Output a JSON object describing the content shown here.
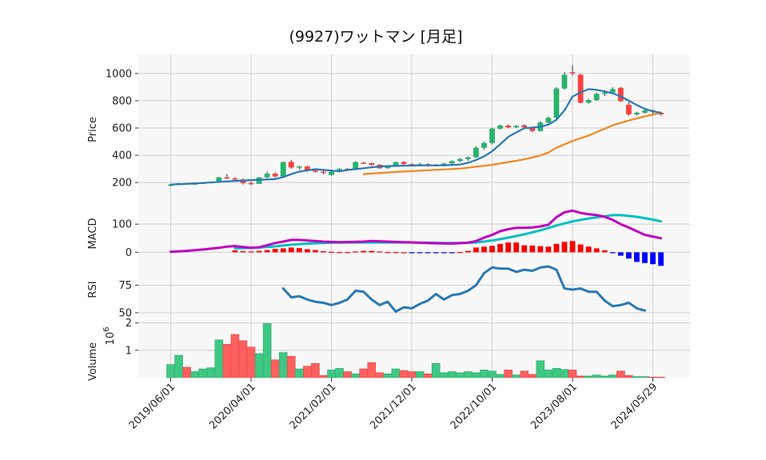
{
  "chart_data": {
    "type": "candlestick",
    "title": "(9927)ワットマン [月足]",
    "x_tick_labels": [
      "2019/06/01",
      "2020/04/01",
      "2021/02/01",
      "2021/12/01",
      "2022/10/01",
      "2023/08/01",
      "2024/05/29"
    ],
    "grid": true,
    "colors": {
      "up": "#26b36b",
      "down": "#ff4040",
      "ma_short": "#2a78b5",
      "ma_long": "#f5861f",
      "macd": "#c000c0",
      "signal": "#00c0c0",
      "hist_pos": "#ff0000",
      "hist_neg": "#0000ff",
      "rsi": "#2a78b5",
      "vol_up": "#3fc884",
      "vol_down": "#ff5f5f"
    },
    "price_panel": {
      "ylabel": "Price",
      "yticks": [
        200,
        400,
        600,
        800,
        1000
      ],
      "ylim": [
        60,
        1140
      ],
      "candles": [
        [
          176,
          185,
          172,
          185
        ],
        [
          186,
          197,
          182,
          194
        ],
        [
          194,
          197,
          186,
          188
        ],
        [
          188,
          195,
          184,
          193
        ],
        [
          193,
          202,
          190,
          198
        ],
        [
          198,
          205,
          195,
          203
        ],
        [
          203,
          242,
          200,
          238
        ],
        [
          238,
          262,
          225,
          230
        ],
        [
          230,
          240,
          216,
          222
        ],
        [
          222,
          230,
          185,
          196
        ],
        [
          196,
          205,
          182,
          190
        ],
        [
          190,
          240,
          190,
          238
        ],
        [
          238,
          280,
          232,
          265
        ],
        [
          265,
          276,
          235,
          245
        ],
        [
          245,
          355,
          240,
          350
        ],
        [
          352,
          365,
          300,
          310
        ],
        [
          310,
          325,
          295,
          318
        ],
        [
          318,
          323,
          280,
          290
        ],
        [
          290,
          300,
          272,
          280
        ],
        [
          280,
          290,
          260,
          272
        ],
        [
          255,
          285,
          250,
          280
        ],
        [
          280,
          305,
          275,
          300
        ],
        [
          300,
          308,
          292,
          298
        ],
        [
          298,
          355,
          296,
          350
        ],
        [
          345,
          352,
          335,
          342
        ],
        [
          342,
          345,
          322,
          330
        ],
        [
          330,
          335,
          300,
          305
        ],
        [
          305,
          320,
          300,
          318
        ],
        [
          318,
          355,
          315,
          350
        ],
        [
          350,
          358,
          330,
          335
        ],
        [
          335,
          340,
          320,
          330
        ],
        [
          330,
          345,
          322,
          335
        ],
        [
          335,
          342,
          315,
          322
        ],
        [
          322,
          335,
          318,
          328
        ],
        [
          328,
          345,
          322,
          340
        ],
        [
          340,
          362,
          332,
          358
        ],
        [
          358,
          380,
          350,
          372
        ],
        [
          372,
          390,
          360,
          385
        ],
        [
          385,
          465,
          380,
          455
        ],
        [
          455,
          500,
          440,
          490
        ],
        [
          490,
          600,
          480,
          595
        ],
        [
          595,
          625,
          588,
          618
        ],
        [
          618,
          625,
          598,
          605
        ],
        [
          605,
          622,
          600,
          615
        ],
        [
          620,
          628,
          598,
          605
        ],
        [
          605,
          612,
          570,
          578
        ],
        [
          578,
          650,
          575,
          640
        ],
        [
          640,
          685,
          635,
          675
        ],
        [
          675,
          900,
          660,
          890
        ],
        [
          890,
          1010,
          880,
          990
        ],
        [
          1010,
          1060,
          985,
          1005
        ],
        [
          990,
          1000,
          780,
          785
        ],
        [
          785,
          815,
          780,
          805
        ],
        [
          805,
          860,
          800,
          850
        ],
        [
          850,
          880,
          835,
          860
        ],
        [
          860,
          900,
          852,
          885
        ],
        [
          895,
          900,
          790,
          798
        ],
        [
          770,
          790,
          690,
          700
        ],
        [
          700,
          720,
          692,
          712
        ],
        [
          712,
          745,
          705,
          728
        ],
        [
          728,
          735,
          690,
          720
        ],
        [
          712,
          720,
          690,
          700
        ]
      ],
      "ma_short": [
        null,
        null,
        null,
        null,
        null,
        null,
        null,
        null,
        null,
        null,
        null,
        null,
        null,
        null,
        null,
        null,
        null,
        null,
        null,
        null,
        null,
        null,
        null,
        null,
        null,
        null,
        null,
        null,
        null,
        null,
        null,
        null,
        null,
        null,
        null,
        null,
        null,
        null,
        null,
        null,
        null,
        null,
        null,
        null,
        null,
        null,
        null,
        null,
        null,
        null,
        null,
        null,
        null,
        null,
        null,
        null,
        null,
        null,
        null,
        null,
        null,
        null
      ],
      "ma_short_points": [
        [
          0,
          185
        ],
        [
          2,
          190
        ],
        [
          4,
          197
        ],
        [
          6,
          205
        ],
        [
          8,
          212
        ],
        [
          10,
          218
        ],
        [
          12,
          222
        ],
        [
          13,
          225
        ],
        [
          14,
          240
        ],
        [
          15,
          262
        ],
        [
          16,
          280
        ],
        [
          18,
          298
        ],
        [
          20,
          288
        ],
        [
          21,
          282
        ],
        [
          22,
          292
        ],
        [
          24,
          305
        ],
        [
          26,
          318
        ],
        [
          28,
          322
        ],
        [
          30,
          325
        ],
        [
          32,
          326
        ],
        [
          34,
          326
        ],
        [
          36,
          332
        ],
        [
          37,
          345
        ],
        [
          38,
          365
        ],
        [
          39,
          392
        ],
        [
          40,
          430
        ],
        [
          41,
          480
        ],
        [
          42,
          535
        ],
        [
          43,
          568
        ],
        [
          44,
          598
        ],
        [
          46,
          608
        ],
        [
          47,
          625
        ],
        [
          48,
          660
        ],
        [
          49,
          730
        ],
        [
          50,
          830
        ],
        [
          51,
          862
        ],
        [
          52,
          885
        ],
        [
          53,
          880
        ],
        [
          54,
          868
        ],
        [
          55,
          855
        ],
        [
          56,
          832
        ],
        [
          57,
          800
        ],
        [
          58,
          768
        ],
        [
          59,
          740
        ],
        [
          60,
          722
        ],
        [
          61,
          712
        ]
      ],
      "ma_long_points": [
        [
          24,
          262
        ],
        [
          28,
          278
        ],
        [
          32,
          290
        ],
        [
          36,
          302
        ],
        [
          40,
          330
        ],
        [
          44,
          370
        ],
        [
          46,
          398
        ],
        [
          47,
          420
        ],
        [
          48,
          455
        ],
        [
          50,
          505
        ],
        [
          52,
          545
        ],
        [
          54,
          595
        ],
        [
          55,
          620
        ],
        [
          57,
          655
        ],
        [
          59,
          685
        ],
        [
          61,
          712
        ]
      ]
    },
    "macd_panel": {
      "ylabel": "MACD",
      "yticks": [
        0,
        100
      ],
      "ylim": [
        -50,
        180
      ],
      "macd_points": [
        [
          0,
          2
        ],
        [
          2,
          5
        ],
        [
          4,
          10
        ],
        [
          6,
          16
        ],
        [
          7,
          20
        ],
        [
          8,
          22
        ],
        [
          9,
          19
        ],
        [
          10,
          16
        ],
        [
          11,
          18
        ],
        [
          12,
          25
        ],
        [
          13,
          33
        ],
        [
          14,
          38
        ],
        [
          15,
          44
        ],
        [
          16,
          44
        ],
        [
          17,
          42
        ],
        [
          19,
          38
        ],
        [
          21,
          36
        ],
        [
          24,
          38
        ],
        [
          25,
          40
        ],
        [
          27,
          38
        ],
        [
          29,
          36
        ],
        [
          31,
          34
        ],
        [
          33,
          32
        ],
        [
          35,
          31
        ],
        [
          37,
          34
        ],
        [
          38,
          40
        ],
        [
          39,
          52
        ],
        [
          40,
          62
        ],
        [
          41,
          75
        ],
        [
          42,
          82
        ],
        [
          43,
          87
        ],
        [
          44,
          87
        ],
        [
          45,
          88
        ],
        [
          46,
          92
        ],
        [
          47,
          98
        ],
        [
          48,
          125
        ],
        [
          49,
          142
        ],
        [
          50,
          148
        ],
        [
          51,
          140
        ],
        [
          52,
          135
        ],
        [
          53,
          132
        ],
        [
          54,
          126
        ],
        [
          55,
          115
        ],
        [
          56,
          100
        ],
        [
          57,
          88
        ],
        [
          58,
          75
        ],
        [
          59,
          62
        ],
        [
          61,
          50
        ]
      ],
      "signal_points": [
        [
          8,
          14
        ],
        [
          9,
          15
        ],
        [
          10,
          16
        ],
        [
          11,
          17
        ],
        [
          12,
          19
        ],
        [
          13,
          21
        ],
        [
          14,
          24
        ],
        [
          15,
          27
        ],
        [
          16,
          29
        ],
        [
          17,
          31
        ],
        [
          18,
          32
        ],
        [
          20,
          34
        ],
        [
          22,
          35
        ],
        [
          24,
          35
        ],
        [
          26,
          35
        ],
        [
          28,
          35
        ],
        [
          30,
          35
        ],
        [
          32,
          34
        ],
        [
          34,
          33
        ],
        [
          36,
          33
        ],
        [
          38,
          35
        ],
        [
          40,
          42
        ],
        [
          42,
          52
        ],
        [
          44,
          64
        ],
        [
          46,
          78
        ],
        [
          48,
          95
        ],
        [
          50,
          110
        ],
        [
          52,
          120
        ],
        [
          54,
          128
        ],
        [
          55,
          132
        ],
        [
          56,
          132
        ],
        [
          58,
          126
        ],
        [
          60,
          116
        ],
        [
          61,
          110
        ]
      ],
      "histogram": [
        null,
        null,
        null,
        null,
        null,
        null,
        null,
        null,
        7,
        4,
        3,
        5,
        8,
        12,
        14,
        17,
        15,
        11,
        8,
        4,
        2,
        1,
        1,
        3,
        5,
        5,
        3,
        1,
        1,
        0,
        -1,
        -2,
        -2,
        -2,
        -2,
        -1,
        1,
        5,
        17,
        20,
        23,
        30,
        35,
        35,
        25,
        24,
        22,
        20,
        30,
        37,
        40,
        28,
        20,
        14,
        7,
        -3,
        -12,
        -22,
        -34,
        -38,
        -42,
        -48
      ]
    },
    "rsi_panel": {
      "ylabel": "RSI",
      "yticks": [
        50,
        75
      ],
      "ylim": [
        42,
        92
      ],
      "points": [
        [
          14,
          72
        ],
        [
          15,
          64
        ],
        [
          16,
          65
        ],
        [
          17,
          62
        ],
        [
          18,
          60
        ],
        [
          19,
          59
        ],
        [
          20,
          57
        ],
        [
          21,
          59
        ],
        [
          22,
          62
        ],
        [
          23,
          70
        ],
        [
          24,
          69
        ],
        [
          25,
          62
        ],
        [
          26,
          57
        ],
        [
          27,
          60
        ],
        [
          28,
          51
        ],
        [
          29,
          55
        ],
        [
          30,
          54
        ],
        [
          31,
          58
        ],
        [
          32,
          61
        ],
        [
          33,
          67
        ],
        [
          34,
          62
        ],
        [
          35,
          66
        ],
        [
          36,
          67
        ],
        [
          37,
          70
        ],
        [
          38,
          75
        ],
        [
          39,
          86
        ],
        [
          40,
          91
        ],
        [
          41,
          90
        ],
        [
          42,
          90
        ],
        [
          43,
          87
        ],
        [
          44,
          89
        ],
        [
          45,
          88
        ],
        [
          46,
          91
        ],
        [
          47,
          92
        ],
        [
          48,
          89
        ],
        [
          49,
          72
        ],
        [
          50,
          71
        ],
        [
          51,
          72
        ],
        [
          52,
          69
        ],
        [
          53,
          69
        ],
        [
          54,
          61
        ],
        [
          55,
          56
        ],
        [
          56,
          57
        ],
        [
          57,
          59
        ],
        [
          58,
          54
        ],
        [
          59,
          52
        ]
      ]
    },
    "volume_panel": {
      "ylabel": "Volume",
      "multiplier_label": "10",
      "multiplier_exp": "6",
      "yticks": [
        1,
        2
      ],
      "ylim": [
        0,
        2.05
      ],
      "values": [
        0.48,
        0.82,
        0.38,
        0.22,
        0.32,
        0.36,
        1.38,
        1.22,
        1.58,
        1.35,
        1.12,
        0.88,
        1.98,
        0.65,
        0.92,
        0.78,
        0.32,
        0.42,
        0.52,
        0.08,
        0.28,
        0.34,
        0.22,
        0.14,
        0.32,
        0.55,
        0.18,
        0.14,
        0.32,
        0.26,
        0.22,
        0.22,
        0.14,
        0.52,
        0.18,
        0.22,
        0.18,
        0.22,
        0.18,
        0.28,
        0.24,
        0.12,
        0.28,
        0.1,
        0.24,
        0.12,
        0.62,
        0.28,
        0.34,
        0.3,
        0.28,
        0.06,
        0.06,
        0.1,
        0.06,
        0.1,
        0.24,
        0.08,
        0.04,
        0.04,
        0.02,
        0.02
      ]
    }
  }
}
